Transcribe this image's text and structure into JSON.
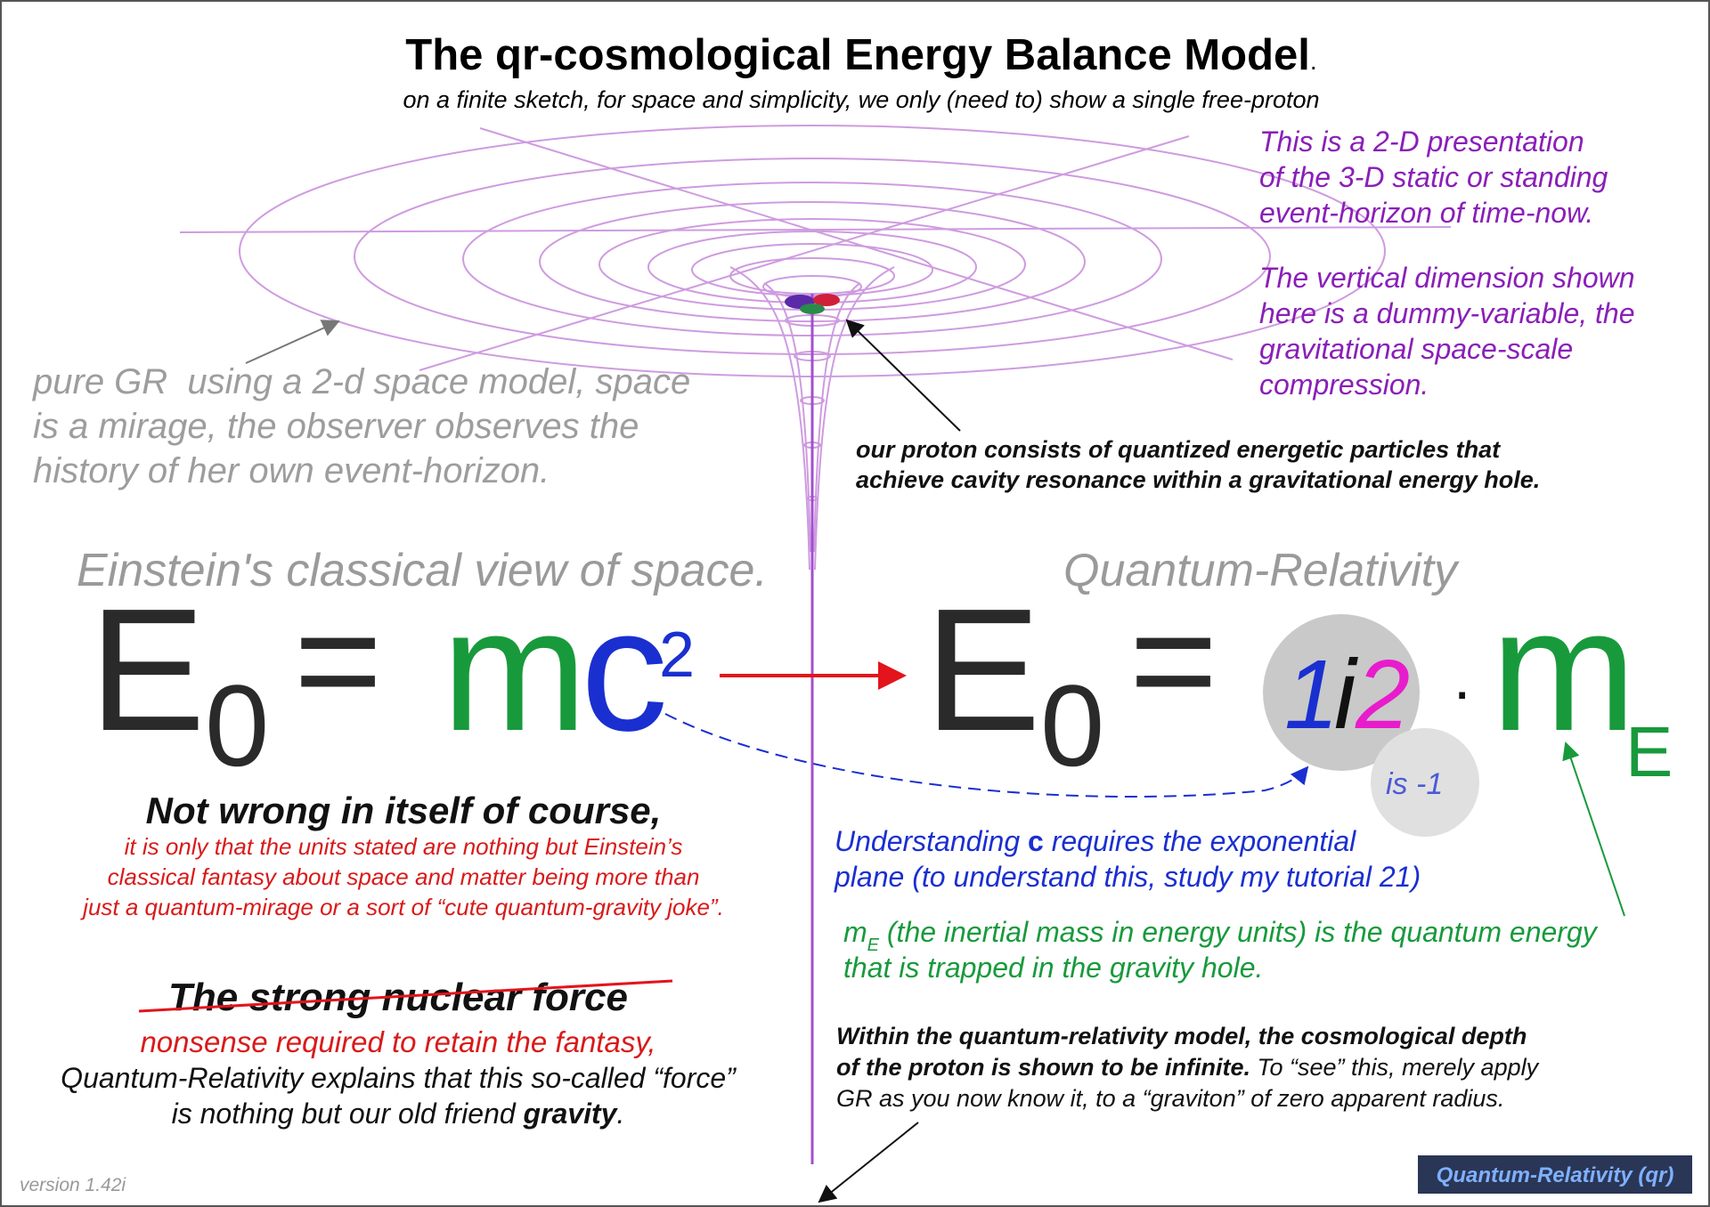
{
  "title": "The qr-cosmological Energy Balance Model",
  "title_period": ".",
  "subtitle": "on a finite sketch, for space and simplicity, we only (need to) show a single free-proton",
  "presentation_note": {
    "lines": [
      "This is a 2-D presentation",
      "of the 3-D static or standing",
      "event-horizon of time-now."
    ]
  },
  "dimension_note": {
    "lines": [
      "The vertical dimension shown",
      "here is a dummy-variable, the",
      "gravitational space-scale",
      "compression."
    ]
  },
  "gr_note": {
    "lines": [
      "pure GR  using a 2-d space model, space",
      "is a mirage, the observer observes the",
      "history of her own event-horizon."
    ]
  },
  "proton_note": {
    "lines": [
      "our proton consists of quantized energetic particles that",
      "achieve cavity resonance within a gravitational energy hole."
    ]
  },
  "einstein_heading": "Einstein's classical view of space.",
  "qr_heading": "Quantum-Relativity",
  "einstein_equation": {
    "E": "E",
    "subscript": "0",
    "equals": "=",
    "m": "m",
    "c": "c",
    "exponent": "2"
  },
  "qr_equation": {
    "E": "E",
    "subscript": "0",
    "equals": "=",
    "one": "1",
    "i": "i",
    "two": "2",
    "dot": "·",
    "m": "m",
    "m_subscript": "E",
    "note": "is -1"
  },
  "not_wrong": {
    "heading": "Not wrong in itself of course,",
    "lines": [
      "it is only that the units stated are nothing but Einstein’s",
      "classical fantasy about space and matter being more than",
      "just a quantum-mirage or a sort of “cute quantum-gravity joke”."
    ]
  },
  "strong_force": {
    "heading": "The strong nuclear force",
    "subheading": "nonsense required to retain the fantasy,",
    "line1": "Quantum-Relativity explains that this so-called “force”",
    "line2": [
      "is nothing but our old friend ",
      "gravity",
      "."
    ]
  },
  "understanding_c": {
    "line1": [
      "Understanding ",
      "c",
      " requires the exponential"
    ],
    "line2": "plane (to understand this, study my tutorial 21)"
  },
  "inertial_mass": {
    "symbol": "m",
    "symbol_subscript": "E",
    "line1": " (the inertial mass in energy units) is the quantum energy",
    "line2": "that is trapped in the gravity hole."
  },
  "depth_note": {
    "line1": "Within the quantum-relativity model, the cosmological depth",
    "line2": [
      "of the proton is shown to be infinite.",
      " To “see” this, merely apply"
    ],
    "line3": "GR as you now know it, to a “graviton” of zero apparent radius."
  },
  "version": "version 1.42i",
  "badge": "Quantum-Relativity (qr)"
}
